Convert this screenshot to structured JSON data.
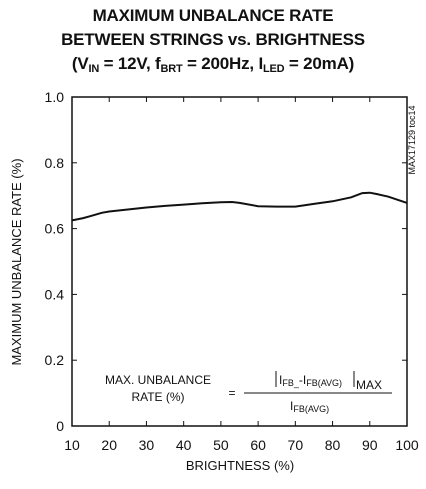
{
  "title": {
    "line1": "MAXIMUM UNBALANCE RATE",
    "line2": "BETWEEN STRINGS vs. BRIGHTNESS",
    "line3_parts": [
      "(V",
      "IN",
      " = 12V, f",
      "BRT",
      " = 200Hz, I",
      "LED",
      " = 20mA)"
    ]
  },
  "figure_code": "MAX17129 toc14",
  "annotation": {
    "label_line1": "MAX. UNBALANCE",
    "label_line2": "RATE (%)",
    "equals": "=",
    "numerator_i1": "I",
    "numerator_s1": "FB_",
    "numerator_dash": "-I",
    "numerator_s2": "FB(AVG)",
    "numerator_max": "MAX",
    "denominator_i": "I",
    "denominator_s": "FB(AVG)"
  },
  "chart_data": {
    "type": "line",
    "title": "MAXIMUM UNBALANCE RATE BETWEEN STRINGS vs. BRIGHTNESS (VIN = 12V, fBRT = 200Hz, ILED = 20mA)",
    "xlabel": "BRIGHTNESS (%)",
    "ylabel": "MAXIMUM UNBALANCE RATE (%)",
    "xlim": [
      10,
      100
    ],
    "ylim": [
      0,
      1.0
    ],
    "x_ticks": [
      "10",
      "20",
      "30",
      "40",
      "50",
      "60",
      "70",
      "80",
      "90",
      "100"
    ],
    "y_ticks": [
      "0",
      "0.2",
      "0.4",
      "0.6",
      "0.8",
      "1.0"
    ],
    "grid": false,
    "series": [
      {
        "x": [
          10,
          13,
          15,
          18,
          20,
          25,
          30,
          35,
          40,
          45,
          50,
          53,
          55,
          60,
          65,
          70,
          75,
          80,
          85,
          88,
          90,
          92,
          95,
          100
        ],
        "y": [
          0.625,
          0.632,
          0.638,
          0.648,
          0.652,
          0.658,
          0.664,
          0.669,
          0.673,
          0.677,
          0.68,
          0.681,
          0.678,
          0.668,
          0.667,
          0.667,
          0.675,
          0.683,
          0.695,
          0.708,
          0.709,
          0.705,
          0.697,
          0.678
        ]
      }
    ]
  }
}
